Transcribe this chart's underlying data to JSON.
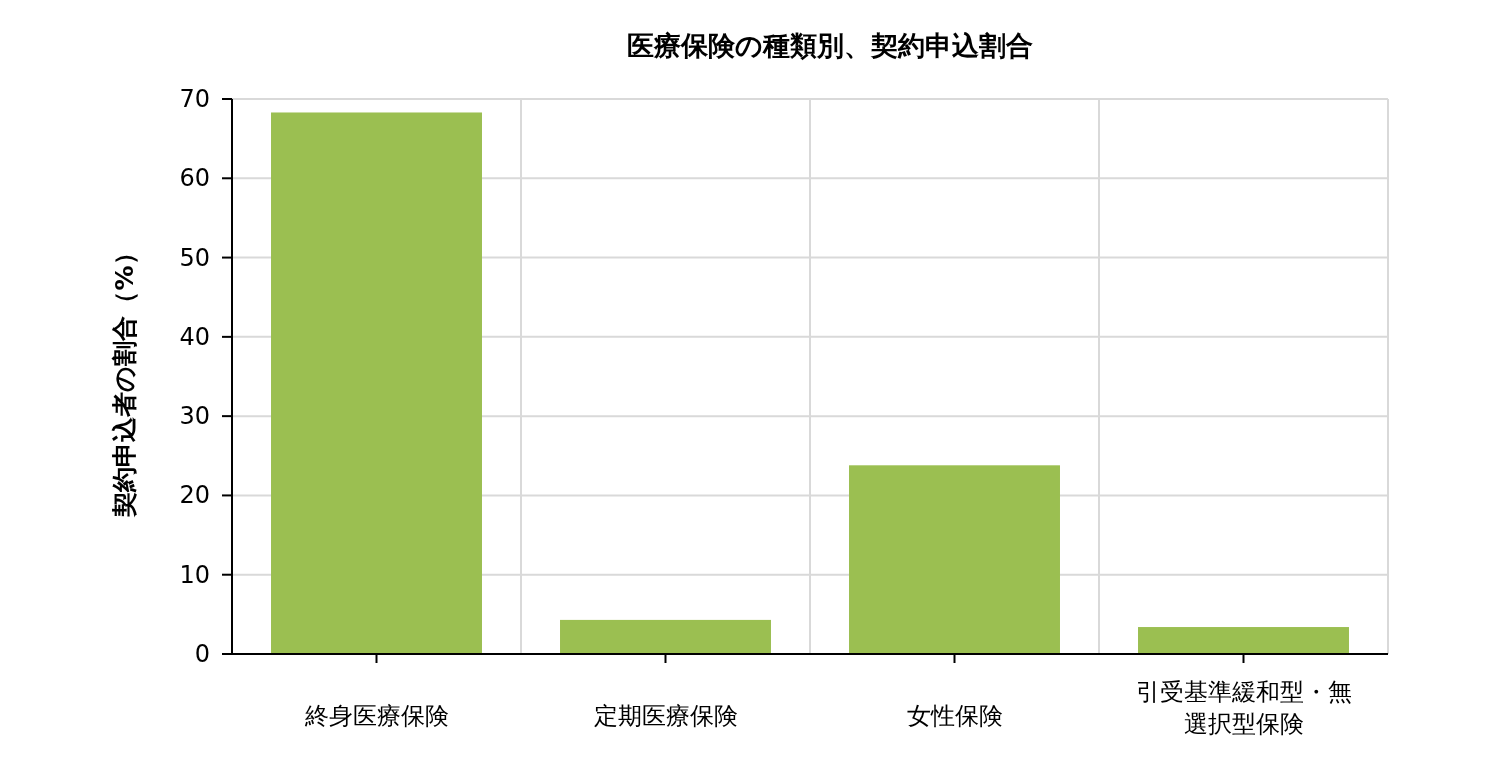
{
  "chart_data": {
    "type": "bar",
    "title": "医療保険の種類別、契約申込割合",
    "ylabel": "契約申込者の割合（%）",
    "categories": [
      "終身医療保険",
      "定期医療保険",
      "女性保険",
      "引受基準緩和型・無選択型保険"
    ],
    "values": [
      68.3,
      4.3,
      23.8,
      3.4
    ],
    "color": "#9bbf51",
    "ylim": [
      0,
      70
    ],
    "yticks": [
      0,
      10,
      20,
      30,
      40,
      50,
      60,
      70
    ],
    "grid": true
  }
}
